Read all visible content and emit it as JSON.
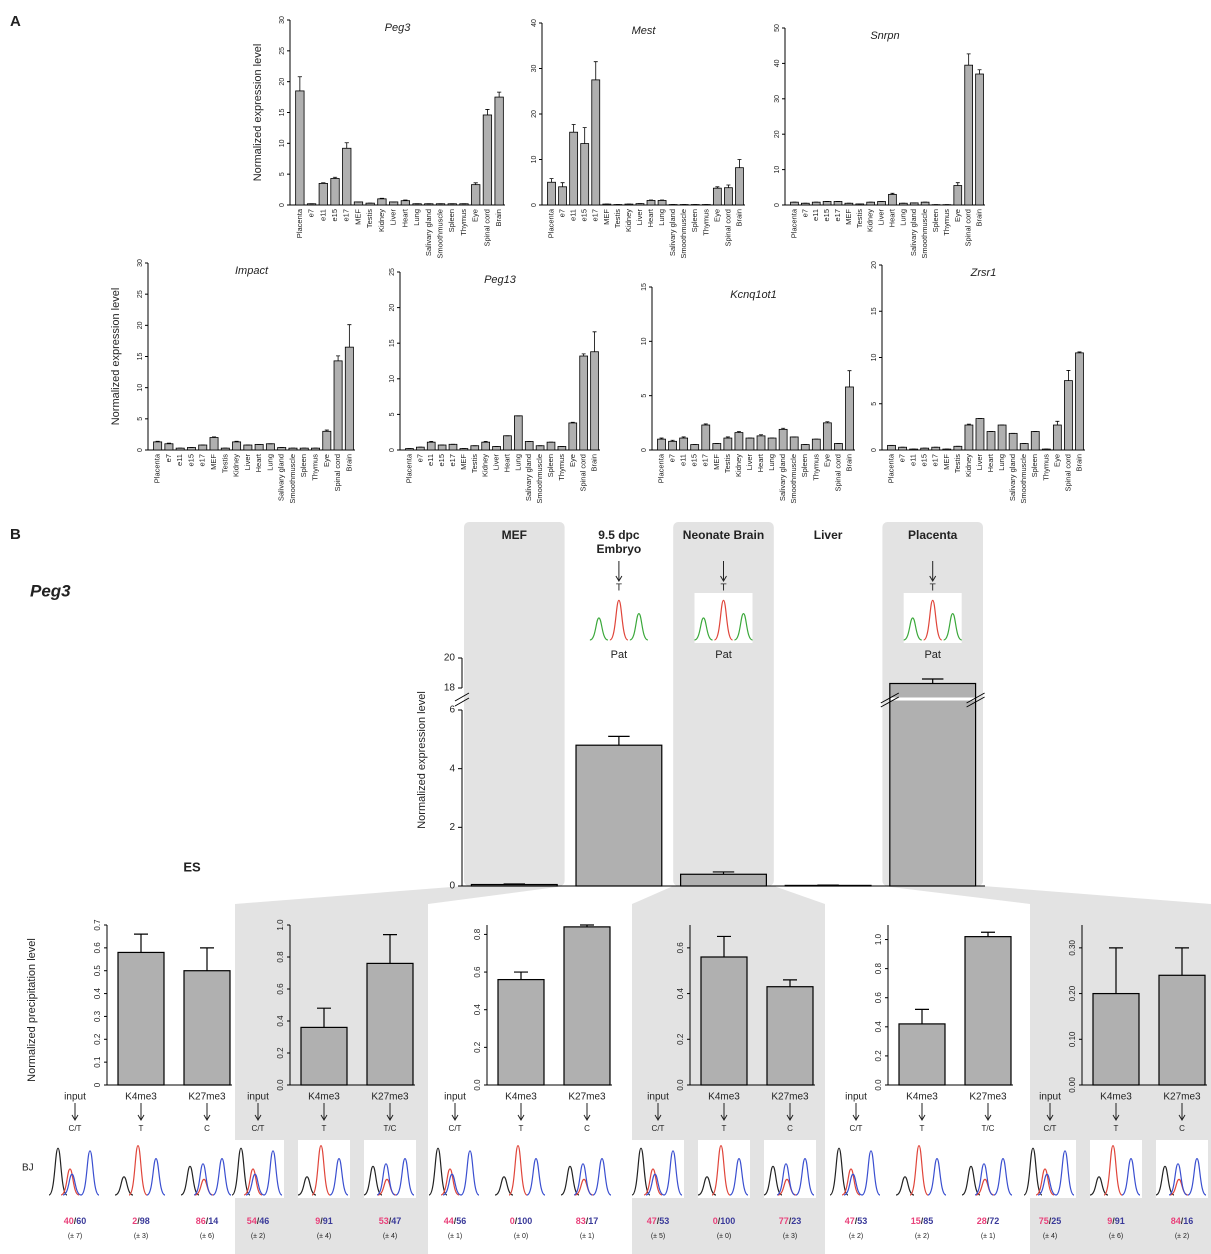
{
  "panel_labels": [
    "A",
    "B"
  ],
  "panel_b": {
    "title": "Peg3",
    "chip_ylabel": "Normalized precipitation level",
    "cell_line": "BJ",
    "ratio_separator": "/",
    "shade_color": "#e3e3e3"
  },
  "chart_data": [
    {
      "type": "bar",
      "title": "Peg3",
      "ylabel": "Normalized expression level",
      "color": "#b0b0b0",
      "categories": [
        "Placenta",
        "e7",
        "e11",
        "e15",
        "e17",
        "MEF",
        "Testis",
        "Kidney",
        "Liver",
        "Heart",
        "Lung",
        "Salivary gland",
        "Smoothmuscle",
        "Spleen",
        "Thymus",
        "Eye",
        "Spinal cord",
        "Brain"
      ],
      "values": [
        18.5,
        0.2,
        3.5,
        4.3,
        9.2,
        0.5,
        0.3,
        1.0,
        0.5,
        0.7,
        0.2,
        0.2,
        0.2,
        0.2,
        0.2,
        3.3,
        14.6,
        17.5
      ],
      "errors": [
        2.3,
        0,
        0.1,
        0.2,
        0.9,
        0,
        0,
        0.1,
        0,
        0.1,
        0,
        0,
        0,
        0,
        0,
        0.3,
        0.9,
        0.8
      ],
      "ylim": [
        0,
        30
      ],
      "yticks": [
        0,
        5,
        10,
        15,
        20,
        25,
        30
      ]
    },
    {
      "type": "bar",
      "title": "Mest",
      "color": "#b0b0b0",
      "categories": [
        "Placenta",
        "e7",
        "e11",
        "e15",
        "e17",
        "MEF",
        "Testis",
        "Kidney",
        "Liver",
        "Heart",
        "Lung",
        "Salivary gland",
        "Smoothmuscle",
        "Spleen",
        "Thymus",
        "Eye",
        "Spinal cord",
        "Brain"
      ],
      "values": [
        5,
        4,
        16,
        13.5,
        27.5,
        0.2,
        0.1,
        0.2,
        0.3,
        1.0,
        1.0,
        0.1,
        0.1,
        0.1,
        0.1,
        3.7,
        3.8,
        8.2
      ],
      "errors": [
        0.8,
        0.9,
        1.7,
        3.5,
        4,
        0,
        0,
        0,
        0,
        0.1,
        0.1,
        0,
        0,
        0,
        0,
        0.3,
        0.6,
        1.8
      ],
      "ylim": [
        0,
        40
      ],
      "yticks": [
        0,
        10,
        20,
        30,
        40
      ]
    },
    {
      "type": "bar",
      "title": "Snrpn",
      "color": "#b0b0b0",
      "categories": [
        "Placenta",
        "e7",
        "e11",
        "e15",
        "e17",
        "MEF",
        "Testis",
        "Kidney",
        "Liver",
        "Heart",
        "Lung",
        "Salivary gland",
        "Smoothmuscle",
        "Spleen",
        "Thymus",
        "Eye",
        "Spinal cord",
        "Brain"
      ],
      "values": [
        0.8,
        0.5,
        0.8,
        1.0,
        1.0,
        0.5,
        0.3,
        0.8,
        1.0,
        3.0,
        0.5,
        0.6,
        0.8,
        0.1,
        0.1,
        5.5,
        39.5,
        37
      ],
      "errors": [
        0,
        0,
        0,
        0,
        0,
        0,
        0,
        0,
        0,
        0.3,
        0,
        0,
        0,
        0,
        0,
        0.8,
        3.2,
        1.2
      ],
      "ylim": [
        0,
        50
      ],
      "yticks": [
        0,
        10,
        20,
        30,
        40,
        50
      ]
    },
    {
      "type": "bar",
      "title": "Impact",
      "ylabel": "Normalized expression level",
      "color": "#b0b0b0",
      "categories": [
        "Placenta",
        "e7",
        "e11",
        "e15",
        "e17",
        "MEF",
        "Testis",
        "Kidney",
        "Liver",
        "Heart",
        "Lung",
        "Salivary gland",
        "Smoothmuscle",
        "Spleen",
        "Thymus",
        "Eye",
        "Spinal cord",
        "Brain"
      ],
      "values": [
        1.3,
        1.0,
        0.3,
        0.4,
        0.8,
        2.0,
        0.3,
        1.3,
        0.8,
        0.9,
        1.0,
        0.4,
        0.3,
        0.3,
        0.3,
        3.0,
        14.3,
        16.5
      ],
      "errors": [
        0.1,
        0.1,
        0,
        0,
        0,
        0.1,
        0,
        0.1,
        0,
        0,
        0,
        0,
        0,
        0,
        0,
        0.2,
        0.8,
        3.6
      ],
      "ylim": [
        0,
        30
      ],
      "yticks": [
        0,
        5,
        10,
        15,
        20,
        25,
        30
      ]
    },
    {
      "type": "bar",
      "title": "Peg13",
      "color": "#b0b0b0",
      "categories": [
        "Placenta",
        "e7",
        "e11",
        "e15",
        "e17",
        "MEF",
        "Testis",
        "Kidney",
        "Liver",
        "Heart",
        "Lung",
        "Salivary gland",
        "Smoothmuscle",
        "Spleen",
        "Thymus",
        "Eye",
        "Spinal cord",
        "Brain"
      ],
      "values": [
        0.2,
        0.4,
        1.1,
        0.7,
        0.8,
        0.2,
        0.6,
        1.1,
        0.5,
        2.0,
        4.8,
        1.2,
        0.6,
        1.1,
        0.5,
        3.8,
        13.2,
        13.8
      ],
      "errors": [
        0,
        0,
        0.1,
        0,
        0,
        0,
        0,
        0.1,
        0,
        0,
        0,
        0,
        0,
        0,
        0,
        0.1,
        0.3,
        2.8
      ],
      "ylim": [
        0,
        25
      ],
      "yticks": [
        0,
        5,
        10,
        15,
        20,
        25
      ]
    },
    {
      "type": "bar",
      "title": "Kcnq1ot1",
      "color": "#b0b0b0",
      "categories": [
        "Placenta",
        "e7",
        "e11",
        "e15",
        "e17",
        "MEF",
        "Testis",
        "Kidney",
        "Liver",
        "Heart",
        "Lung",
        "Salivary gland",
        "Smoothmuscle",
        "Spleen",
        "Thymus",
        "Eye",
        "Spinal cord",
        "Brain"
      ],
      "values": [
        1.0,
        0.8,
        1.1,
        0.5,
        2.3,
        0.6,
        1.1,
        1.6,
        1.1,
        1.3,
        1.1,
        1.9,
        1.2,
        0.5,
        1.0,
        2.5,
        0.6,
        5.8
      ],
      "errors": [
        0.1,
        0.1,
        0.1,
        0,
        0.1,
        0,
        0.1,
        0.1,
        0,
        0.1,
        0,
        0.1,
        0,
        0,
        0,
        0.1,
        0,
        1.5
      ],
      "ylim": [
        0,
        15
      ],
      "yticks": [
        0,
        5,
        10,
        15
      ]
    },
    {
      "type": "bar",
      "title": "Zrsr1",
      "color": "#b0b0b0",
      "categories": [
        "Placenta",
        "e7",
        "e11",
        "e15",
        "e17",
        "MEF",
        "Testis",
        "Kidney",
        "Liver",
        "Heart",
        "Lung",
        "Salivary gland",
        "Smoothmuscle",
        "Spleen",
        "Thymus",
        "Eye",
        "Spinal cord",
        "Brain"
      ],
      "values": [
        0.5,
        0.3,
        0.1,
        0.2,
        0.3,
        0.1,
        0.4,
        2.7,
        3.4,
        2.0,
        2.7,
        1.8,
        0.7,
        2.0,
        0.1,
        2.7,
        7.5,
        10.5
      ],
      "errors": [
        0,
        0,
        0,
        0,
        0,
        0,
        0,
        0.1,
        0,
        0,
        0,
        0,
        0,
        0,
        0,
        0.4,
        1.1,
        0.1
      ],
      "ylim": [
        0,
        20
      ],
      "yticks": [
        0,
        5,
        10,
        15,
        20
      ]
    },
    {
      "type": "bar",
      "ylabel": "Normalized expression level",
      "color": "#b0b0b0",
      "categories": [
        "MEF",
        "9.5 dpc\nEmbryo",
        "Neonate Brain",
        "Liver",
        "Placenta"
      ],
      "values": [
        0.05,
        4.8,
        0.4,
        0.02,
        18.3
      ],
      "errors": [
        0.02,
        0.3,
        0.08,
        0.01,
        0.3
      ],
      "shaded": [
        true,
        false,
        true,
        false,
        true
      ],
      "allele_calls": [
        null,
        "T",
        "T",
        null,
        "T"
      ],
      "parent_labels": [
        null,
        "Pat",
        "Pat",
        null,
        "Pat"
      ],
      "ylim": [
        0,
        20
      ],
      "ybreak": [
        6,
        18
      ],
      "yticks": [
        0,
        2,
        4,
        6,
        18,
        20
      ]
    },
    {
      "type": "bar",
      "title": "ES",
      "color": "#b0b0b0",
      "input_label": "input",
      "categories": [
        "K4me3",
        "K27me3"
      ],
      "values": [
        0.58,
        0.5
      ],
      "errors": [
        0.08,
        0.1
      ],
      "ylim": [
        0,
        0.7
      ],
      "yticks": [
        0,
        0.1,
        0.2,
        0.3,
        0.4,
        0.5,
        0.6,
        0.7
      ],
      "alleles": [
        "C/T",
        "T",
        "C"
      ],
      "ratios": [
        [
          40,
          60
        ],
        [
          2,
          98
        ],
        [
          86,
          14
        ]
      ],
      "ratio_sd": [
        "(± 7)",
        "(± 3)",
        "(± 6)"
      ]
    },
    {
      "type": "bar",
      "color": "#b0b0b0",
      "input_label": "input",
      "categories": [
        "K4me3",
        "K27me3"
      ],
      "values": [
        0.36,
        0.76
      ],
      "errors": [
        0.12,
        0.18
      ],
      "ylim": [
        0,
        1.0
      ],
      "yticks": [
        {
          "value": 0,
          "label": "0.0"
        },
        0.2,
        0.4,
        0.6,
        0.8,
        {
          "value": 1,
          "label": "1.0"
        }
      ],
      "alleles": [
        "C/T",
        "T",
        "T/C"
      ],
      "ratios": [
        [
          54,
          46
        ],
        [
          9,
          91
        ],
        [
          53,
          47
        ]
      ],
      "ratio_sd": [
        "(± 2)",
        "(± 4)",
        "(± 4)"
      ]
    },
    {
      "type": "bar",
      "color": "#b0b0b0",
      "input_label": "input",
      "categories": [
        "K4me3",
        "K27me3"
      ],
      "values": [
        0.56,
        0.84
      ],
      "errors": [
        0.04,
        0.01
      ],
      "ylim": [
        0,
        0.85
      ],
      "yticks": [
        {
          "value": 0,
          "label": "0.0"
        },
        0.2,
        0.4,
        0.6,
        0.8
      ],
      "alleles": [
        "C/T",
        "T",
        "C"
      ],
      "ratios": [
        [
          44,
          56
        ],
        [
          0,
          100
        ],
        [
          83,
          17
        ]
      ],
      "ratio_sd": [
        "(± 1)",
        "(± 0)",
        "(± 1)"
      ]
    },
    {
      "type": "bar",
      "color": "#b0b0b0",
      "input_label": "input",
      "categories": [
        "K4me3",
        "K27me3"
      ],
      "values": [
        0.56,
        0.43
      ],
      "errors": [
        0.09,
        0.03
      ],
      "ylim": [
        0,
        0.7
      ],
      "yticks": [
        {
          "value": 0,
          "label": "0.0"
        },
        0.2,
        0.4,
        0.6
      ],
      "alleles": [
        "C/T",
        "T",
        "C"
      ],
      "ratios": [
        [
          47,
          53
        ],
        [
          0,
          100
        ],
        [
          77,
          23
        ]
      ],
      "ratio_sd": [
        "(± 5)",
        "(± 0)",
        "(± 3)"
      ]
    },
    {
      "type": "bar",
      "color": "#b0b0b0",
      "input_label": "input",
      "categories": [
        "K4me3",
        "K27me3"
      ],
      "values": [
        0.42,
        1.02
      ],
      "errors": [
        0.1,
        0.03
      ],
      "ylim": [
        0,
        1.1
      ],
      "yticks": [
        {
          "value": 0,
          "label": "0.0"
        },
        0.2,
        0.4,
        0.6,
        0.8,
        {
          "value": 1,
          "label": "1.0"
        }
      ],
      "alleles": [
        "C/T",
        "T",
        "T/C"
      ],
      "ratios": [
        [
          47,
          53
        ],
        [
          15,
          85
        ],
        [
          28,
          72
        ]
      ],
      "ratio_sd": [
        "(± 2)",
        "(± 2)",
        "(± 1)"
      ]
    },
    {
      "type": "bar",
      "color": "#b0b0b0",
      "input_label": "input",
      "categories": [
        "K4me3",
        "K27me3"
      ],
      "values": [
        0.2,
        0.24
      ],
      "errors": [
        0.1,
        0.06
      ],
      "ylim": [
        0,
        0.35
      ],
      "yticks": [
        {
          "value": 0,
          "label": "0.00"
        },
        {
          "value": 0.1,
          "label": "0.10"
        },
        {
          "value": 0.2,
          "label": "0.20"
        },
        {
          "value": 0.3,
          "label": "0.30"
        }
      ],
      "alleles": [
        "C/T",
        "T",
        "C"
      ],
      "ratios": [
        [
          75,
          25
        ],
        [
          9,
          91
        ],
        [
          84,
          16
        ]
      ],
      "ratio_sd": [
        "(± 4)",
        "(± 6)",
        "(± 2)"
      ]
    }
  ]
}
